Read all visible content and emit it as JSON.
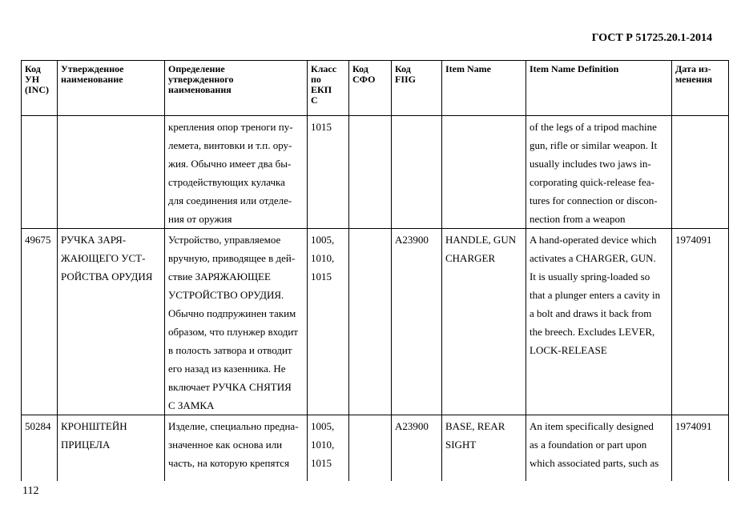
{
  "header": {
    "doc_code": "ГОСТ Р 51725.20.1-2014"
  },
  "footer": {
    "page_number": "112"
  },
  "table": {
    "columns": [
      "Код УН (INC)",
      "Утвержденное наименование",
      "Определение утвержденного наименования",
      "Класс по ЕКПС",
      "Код СФО",
      "Код FIIG",
      "Item Name",
      "Item Name Definition",
      "Дата изменения"
    ],
    "column_lines": [
      [
        "Код",
        "УН",
        "(INC)"
      ],
      [
        "Утвержденное",
        "наименование"
      ],
      [
        "Определение",
        "утвержденного",
        "наименования"
      ],
      [
        "Класс",
        "по",
        "ЕКП",
        "С"
      ],
      [
        "Код",
        "СФО"
      ],
      [
        "Код",
        "FIIG"
      ],
      [
        "Item Name"
      ],
      [
        "Item Name Definition"
      ],
      [
        "Дата из-",
        "менения"
      ]
    ],
    "rows": [
      {
        "inc": [],
        "name": [],
        "definition": [
          "крепления опор треноги пу-",
          "лемета, винтовки и т.п. ору-",
          "жия. Обычно имеет два бы-",
          "стродействующих кулачка",
          "для соединения или отделе-",
          "ния от оружия"
        ],
        "class": [
          "1015"
        ],
        "sfo": [],
        "fiig": [],
        "item_name": [],
        "item_def": [
          "of the legs of a tripod machine",
          "gun, rifle or similar weapon. It",
          "usually includes two jaws in-",
          "corporating quick-release fea-",
          "tures for connection or discon-",
          "nection from a weapon"
        ],
        "date": []
      },
      {
        "inc": [
          "49675"
        ],
        "name": [
          "РУЧКА ЗАРЯ-",
          "ЖАЮЩЕГО УСТ-",
          "РОЙСТВА ОРУДИЯ"
        ],
        "definition": [
          "Устройство, управляемое",
          "вручную, приводящее в дей-",
          "ствие ЗАРЯЖАЮЩЕЕ",
          "УСТРОЙСТВО ОРУДИЯ.",
          "Обычно подпружинен таким",
          "образом, что плунжер входит",
          "в полость затвора и отводит",
          "его назад из казенника. Не",
          "включает РУЧКА СНЯТИЯ",
          "С ЗАМКА"
        ],
        "class": [
          "1005,",
          "1010,",
          "1015"
        ],
        "sfo": [],
        "fiig": [
          "A23900"
        ],
        "item_name": [
          "HANDLE, GUN",
          "CHARGER"
        ],
        "item_def": [
          "A hand-operated device which",
          "activates a CHARGER, GUN.",
          "It is usually spring-loaded so",
          "that a plunger enters a cavity in",
          "a bolt and draws it back from",
          "the breech. Excludes LEVER,",
          "LOCK-RELEASE"
        ],
        "date": [
          "1974091"
        ]
      },
      {
        "inc": [
          "50284"
        ],
        "name": [
          "КРОНШТЕЙН",
          "ПРИЦЕЛА"
        ],
        "definition": [
          "Изделие, специально предна-",
          "значенное как основа или",
          "часть, на которую крепятся"
        ],
        "class": [
          "1005,",
          "1010,",
          "1015"
        ],
        "sfo": [],
        "fiig": [
          "A23900"
        ],
        "item_name": [
          "BASE, REAR",
          "SIGHT"
        ],
        "item_def": [
          "An item specifically designed",
          "as a foundation or part upon",
          "which associated parts, such as"
        ],
        "date": [
          "1974091"
        ]
      }
    ]
  }
}
